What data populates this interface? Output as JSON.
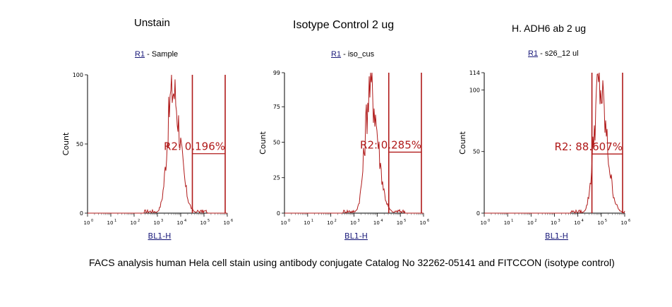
{
  "caption": "FACS analysis human Hela cell stain using antibody conjugate Catalog No 32262-05141 and FITCCON (isotype control)",
  "colors": {
    "histogram": "#b01a1a",
    "gate": "#b01a1a",
    "axis": "#000000",
    "link": "#1a1a7a"
  },
  "chart_data": [
    {
      "type": "histogram",
      "title": "Unstain",
      "gate_link": "R1",
      "gate_name": " - Sample",
      "xlabel": "BL1-H",
      "ylabel": "Count",
      "x_scale": "log",
      "x_ticks": [
        "10",
        "10",
        "10",
        "10",
        "10",
        "10",
        "10"
      ],
      "x_ticks_exp": [
        "0",
        "1",
        "2",
        "3",
        "4",
        "5",
        "6"
      ],
      "y_ticks": [
        0,
        50,
        100
      ],
      "ylim": [
        0,
        100
      ],
      "peak": {
        "center_log": 3.65,
        "height": 100
      },
      "gate": {
        "label": "R2: 0.196%",
        "start_log": 4.5,
        "end_log": 6.0,
        "level": 43
      },
      "marker_log": 4.5
    },
    {
      "type": "histogram",
      "title": "Isotype Control 2 ug",
      "gate_link": "R1",
      "gate_name": " - iso_cus",
      "xlabel": "BL1-H",
      "ylabel": "Count",
      "x_scale": "log",
      "x_ticks": [
        "10",
        "10",
        "10",
        "10",
        "10",
        "10",
        "10"
      ],
      "x_ticks_exp": [
        "0",
        "1",
        "2",
        "3",
        "4",
        "5",
        "6"
      ],
      "y_ticks": [
        0,
        25,
        50,
        75,
        99
      ],
      "ylim": [
        0,
        99
      ],
      "peak": {
        "center_log": 3.7,
        "height": 99
      },
      "gate": {
        "label": "R2: 0.285%",
        "start_log": 4.5,
        "end_log": 6.0,
        "level": 43
      },
      "marker_log": 4.5
    },
    {
      "type": "histogram",
      "title": "H. ADH6 ab 2 ug",
      "gate_link": "R1",
      "gate_name": " - s26_12 ul",
      "xlabel": "BL1-H",
      "ylabel": "Count",
      "x_scale": "log",
      "x_ticks": [
        "10",
        "10",
        "10",
        "10",
        "10",
        "10",
        "10"
      ],
      "x_ticks_exp": [
        "0",
        "1",
        "2",
        "3",
        "4",
        "5",
        "6"
      ],
      "y_ticks": [
        0,
        50,
        100,
        114
      ],
      "ylim": [
        0,
        114
      ],
      "peak": {
        "center_log": 4.9,
        "height": 114
      },
      "gate": {
        "label": "R2: 88.607%",
        "start_log": 4.6,
        "end_log": 6.0,
        "level": 48
      },
      "marker_log": 4.9
    }
  ]
}
